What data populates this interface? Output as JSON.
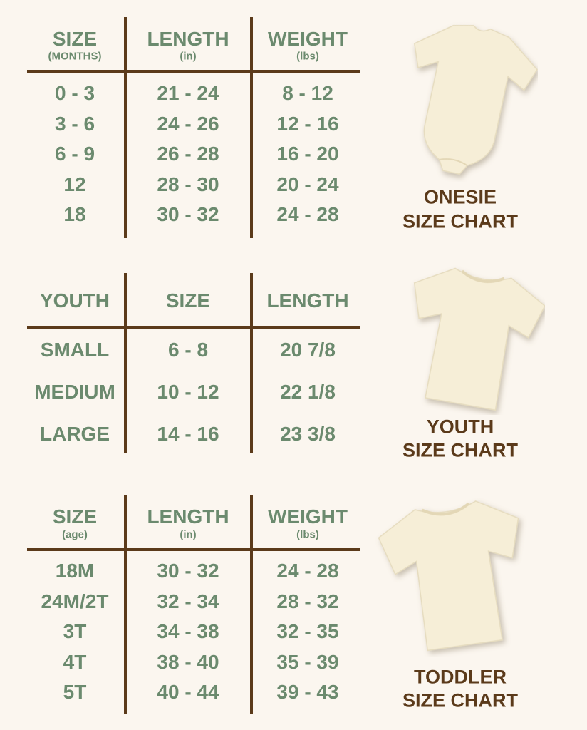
{
  "colors": {
    "background": "#fbf6ef",
    "text_green": "#6b8a6e",
    "line_brown": "#5b3a1a",
    "caption_brown": "#5b3a1a",
    "garment": "#f6eed7"
  },
  "onesie": {
    "headers": [
      {
        "label": "SIZE",
        "sub": "(MONTHS)"
      },
      {
        "label": "LENGTH",
        "sub": "(in)"
      },
      {
        "label": "WEIGHT",
        "sub": "(lbs)"
      }
    ],
    "rows": [
      [
        "0 - 3",
        "21 - 24",
        "8 - 12"
      ],
      [
        "3 - 6",
        "24 - 26",
        "12 - 16"
      ],
      [
        "6 - 9",
        "26 - 28",
        "16 - 20"
      ],
      [
        "12",
        "28 - 30",
        "20 - 24"
      ],
      [
        "18",
        "30 - 32",
        "24 - 28"
      ]
    ],
    "caption": [
      "ONESIE",
      "SIZE CHART"
    ],
    "image_icon": "onesie-image"
  },
  "youth": {
    "headers": [
      {
        "label": "YOUTH"
      },
      {
        "label": "SIZE"
      },
      {
        "label": "LENGTH"
      }
    ],
    "rows": [
      [
        "SMALL",
        "6 - 8",
        "20 7/8"
      ],
      [
        "MEDIUM",
        "10 - 12",
        "22 1/8"
      ],
      [
        "LARGE",
        "14 - 16",
        "23 3/8"
      ]
    ],
    "caption": [
      "YOUTH",
      "SIZE CHART"
    ],
    "image_icon": "tshirt-image"
  },
  "toddler": {
    "headers": [
      {
        "label": "SIZE",
        "sub": "(age)"
      },
      {
        "label": "LENGTH",
        "sub": "(in)"
      },
      {
        "label": "WEIGHT",
        "sub": "(lbs)"
      }
    ],
    "rows": [
      [
        "18M",
        "30 - 32",
        "24 - 28"
      ],
      [
        "24M/2T",
        "32 - 34",
        "28 - 32"
      ],
      [
        "3T",
        "34 - 38",
        "32 - 35"
      ],
      [
        "4T",
        "38 - 40",
        "35 - 39"
      ],
      [
        "5T",
        "40 - 44",
        "39 - 43"
      ]
    ],
    "caption": [
      "TODDLER",
      "SIZE CHART"
    ],
    "image_icon": "tshirt-image"
  }
}
